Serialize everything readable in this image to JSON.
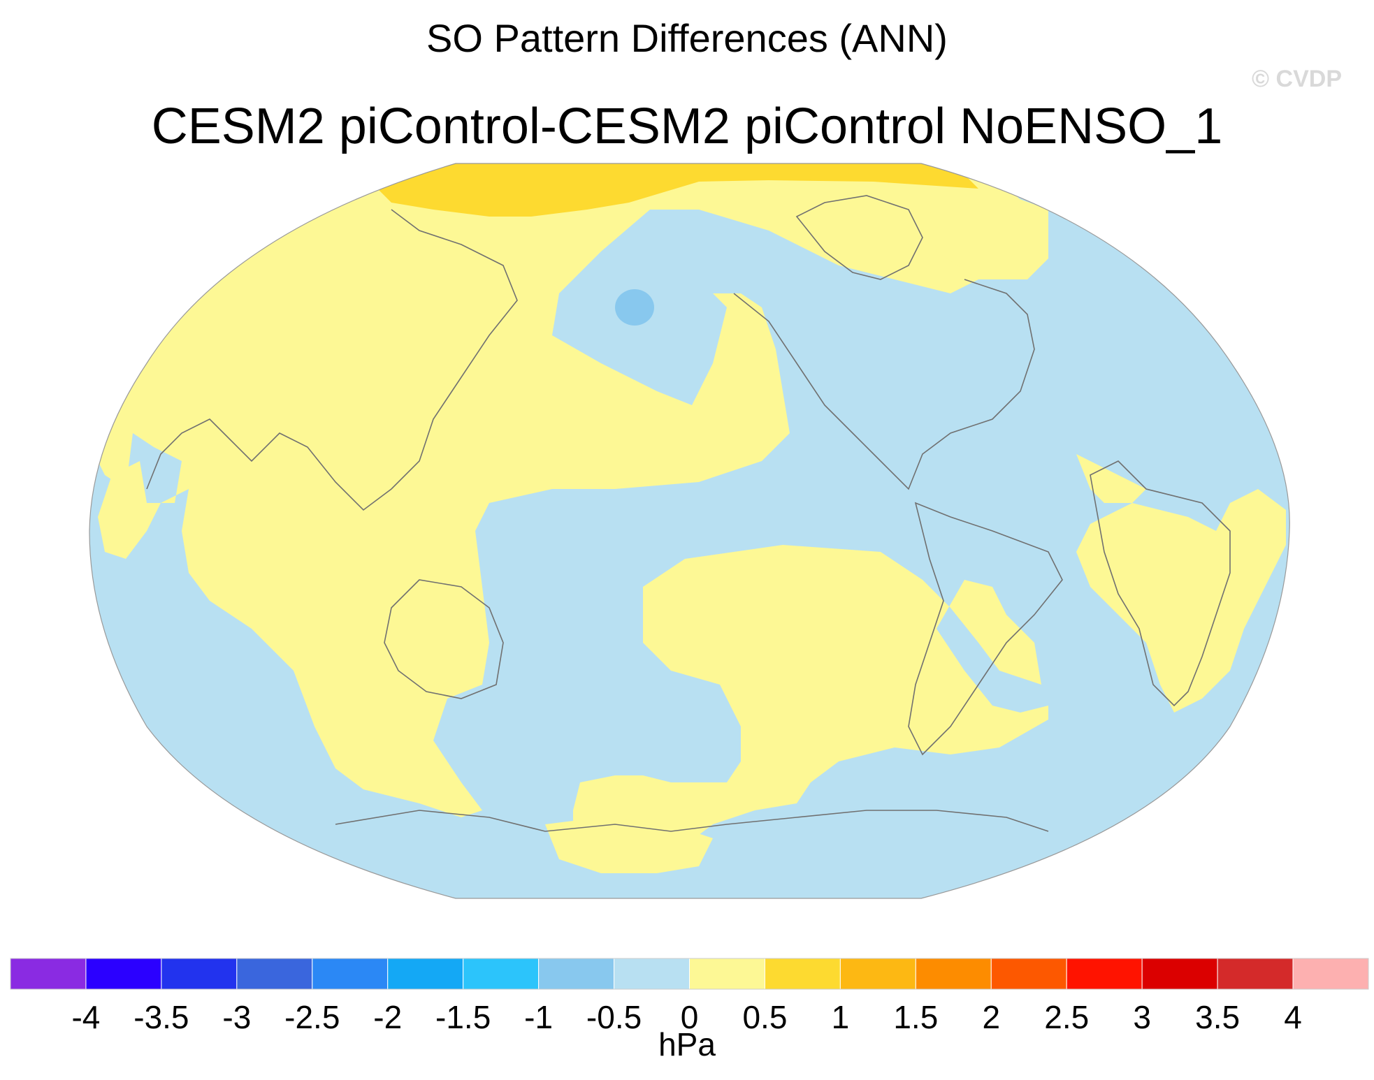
{
  "title": "SO Pattern Differences (ANN)",
  "subtitle": "CESM2 piControl-CESM2 piControl NoENSO_1",
  "watermark": "© CVDP",
  "colorbar": {
    "units": "hPa",
    "colors": [
      "#8a2be2",
      "#2b00ff",
      "#2233ee",
      "#3a66dd",
      "#2b88f5",
      "#14a8f5",
      "#2cc4fb",
      "#88c8ee",
      "#b8e0f2",
      "#fdf895",
      "#fdda30",
      "#fdb813",
      "#fd8c00",
      "#fd5800",
      "#ff1300",
      "#db0000",
      "#d42a2a",
      "#fdb0b0"
    ],
    "tick_labels": [
      "-4",
      "-3.5",
      "-3",
      "-2.5",
      "-2",
      "-1.5",
      "-1",
      "-0.5",
      "0",
      "0.5",
      "1",
      "1.5",
      "2",
      "2.5",
      "3",
      "3.5",
      "4"
    ]
  },
  "map": {
    "projection": "Robinson",
    "center_longitude": "180",
    "background_level_color": "#b8e0f2",
    "positive_region_color": "#fdf895",
    "strong_positive_color": "#fdda30",
    "negative_region_color": "#88c8ee",
    "coastline_color": "#707070"
  }
}
